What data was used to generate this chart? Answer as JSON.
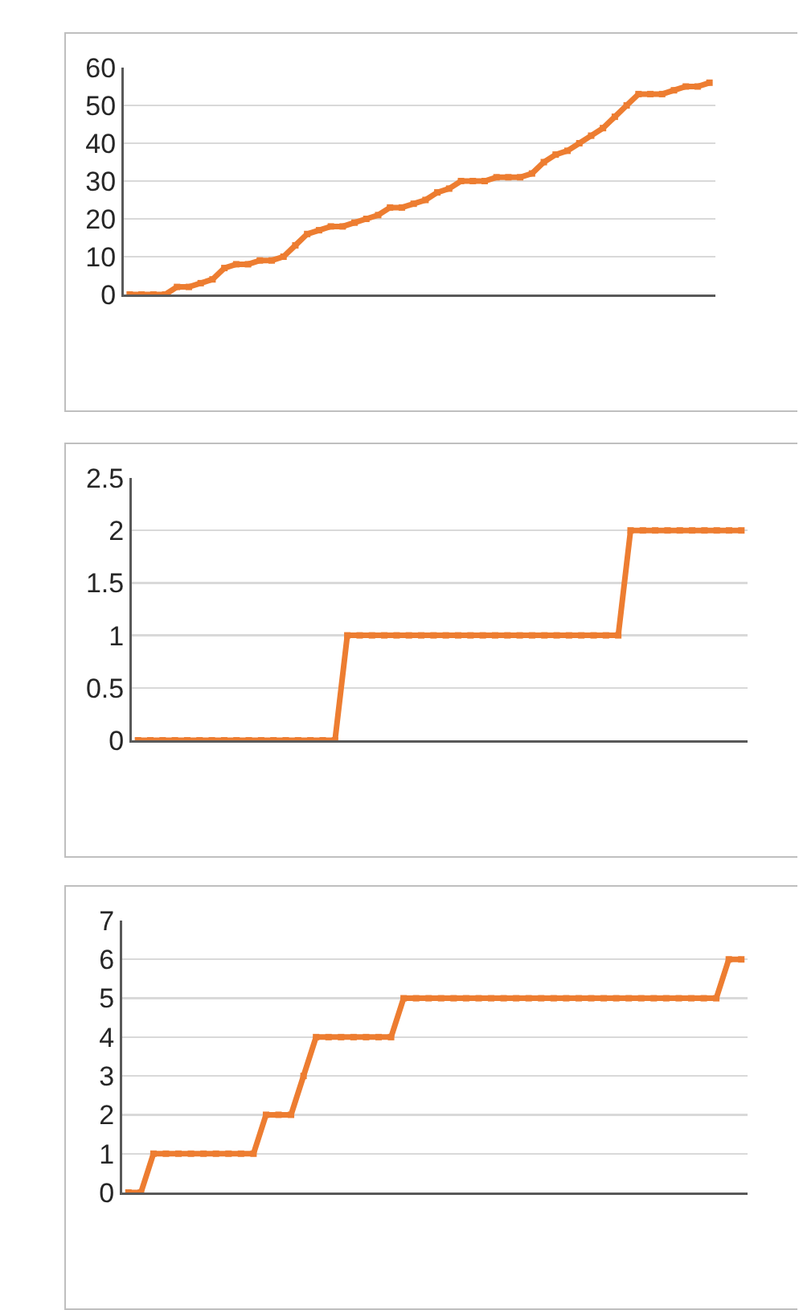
{
  "chart_data": [
    {
      "type": "line",
      "categories": [
        null,
        null,
        null,
        null,
        null,
        null,
        null,
        null,
        null,
        null,
        null,
        null,
        null,
        null,
        null,
        null,
        null,
        null,
        null,
        null,
        null,
        null,
        null,
        null,
        null,
        null,
        null,
        null,
        null,
        null,
        null,
        null,
        null,
        null,
        null,
        null,
        null,
        null,
        null,
        null,
        null,
        null,
        null,
        null,
        null,
        null,
        null,
        null,
        null,
        null
      ],
      "values": [
        0,
        0,
        0,
        0,
        2,
        2,
        3,
        4,
        7,
        8,
        8,
        9,
        9,
        10,
        13,
        16,
        17,
        18,
        18,
        19,
        20,
        21,
        23,
        23,
        24,
        25,
        27,
        28,
        30,
        30,
        30,
        31,
        31,
        31,
        32,
        35,
        37,
        38,
        40,
        42,
        44,
        47,
        50,
        53,
        53,
        53,
        54,
        55,
        55,
        56
      ],
      "color": "#ed7d31",
      "ylim": [
        0,
        60
      ],
      "yticks": [
        0,
        10,
        20,
        30,
        40,
        50,
        60
      ],
      "grid": "y",
      "marker": "square",
      "tick_labels": "y"
    },
    {
      "type": "line",
      "categories": [
        null,
        null,
        null,
        null,
        null,
        null,
        null,
        null,
        null,
        null,
        null,
        null,
        null,
        null,
        null,
        null,
        null,
        null,
        null,
        null,
        null,
        null,
        null,
        null,
        null,
        null,
        null,
        null,
        null,
        null,
        null,
        null,
        null,
        null,
        null,
        null,
        null,
        null,
        null,
        null,
        null,
        null,
        null,
        null,
        null,
        null,
        null,
        null,
        null,
        null
      ],
      "values": [
        0,
        0,
        0,
        0,
        0,
        0,
        0,
        0,
        0,
        0,
        0,
        0,
        0,
        0,
        0,
        0,
        0,
        1,
        1,
        1,
        1,
        1,
        1,
        1,
        1,
        1,
        1,
        1,
        1,
        1,
        1,
        1,
        1,
        1,
        1,
        1,
        1,
        1,
        1,
        1,
        2,
        2,
        2,
        2,
        2,
        2,
        2,
        2,
        2,
        2
      ],
      "color": "#ed7d31",
      "ylim": [
        0,
        2.5
      ],
      "yticks": [
        0,
        0.5,
        1,
        1.5,
        2,
        2.5
      ],
      "grid": "y",
      "marker": "square",
      "tick_labels": "y"
    },
    {
      "type": "line",
      "categories": [
        null,
        null,
        null,
        null,
        null,
        null,
        null,
        null,
        null,
        null,
        null,
        null,
        null,
        null,
        null,
        null,
        null,
        null,
        null,
        null,
        null,
        null,
        null,
        null,
        null,
        null,
        null,
        null,
        null,
        null,
        null,
        null,
        null,
        null,
        null,
        null,
        null,
        null,
        null,
        null,
        null,
        null,
        null,
        null,
        null,
        null,
        null,
        null,
        null,
        null
      ],
      "values": [
        0,
        0,
        1,
        1,
        1,
        1,
        1,
        1,
        1,
        1,
        1,
        2,
        2,
        2,
        3,
        4,
        4,
        4,
        4,
        4,
        4,
        4,
        5,
        5,
        5,
        5,
        5,
        5,
        5,
        5,
        5,
        5,
        5,
        5,
        5,
        5,
        5,
        5,
        5,
        5,
        5,
        5,
        5,
        5,
        5,
        5,
        5,
        5,
        6,
        6
      ],
      "color": "#ed7d31",
      "ylim": [
        0,
        7
      ],
      "yticks": [
        0,
        1,
        2,
        3,
        4,
        5,
        6,
        7
      ],
      "grid": "y",
      "marker": "square",
      "tick_labels": "y"
    }
  ]
}
